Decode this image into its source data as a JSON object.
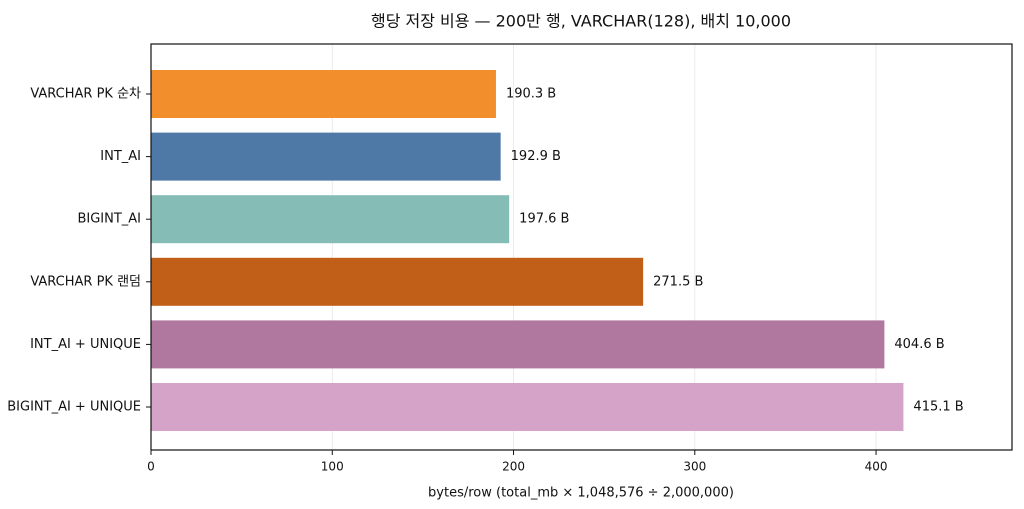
{
  "chart_data": {
    "type": "barh",
    "title": "행당 저장 비용 — 200만 행, VARCHAR(128), 배치 10,000",
    "xlabel": "bytes/row (total_mb × 1,048,576 ÷ 2,000,000)",
    "categories": [
      "VARCHAR PK 순차",
      "INT_AI",
      "BIGINT_AI",
      "VARCHAR PK 랜덤",
      "INT_AI + UNIQUE",
      "BIGINT_AI + UNIQUE"
    ],
    "values": [
      190.3,
      192.9,
      197.6,
      271.5,
      404.6,
      415.1
    ],
    "value_labels": [
      "190.3 B",
      "192.9 B",
      "197.6 B",
      "271.5 B",
      "404.6 B",
      "415.1 B"
    ],
    "colors": [
      "#f28e2b",
      "#4e79a7",
      "#86bcb6",
      "#c15f18",
      "#b0779f",
      "#d4a3c7"
    ],
    "xlim": [
      0,
      475
    ],
    "xticks": [
      0,
      100,
      200,
      300,
      400
    ],
    "grid": true
  }
}
